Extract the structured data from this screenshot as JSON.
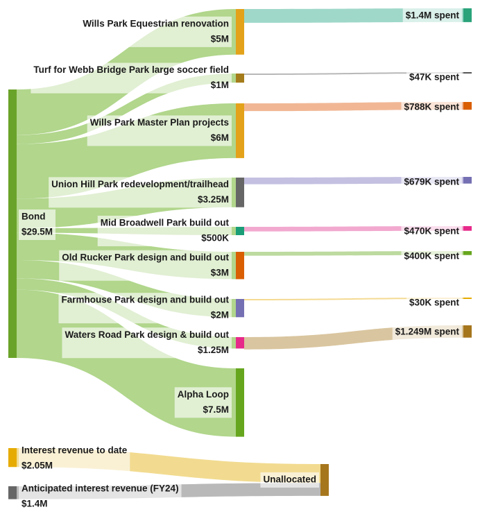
{
  "source": {
    "name": "Bond",
    "amount": "$29.5M",
    "color": "#6aa329"
  },
  "projects": [
    {
      "name": "Wills Park Equestrian renovation",
      "amount": "$5M",
      "budget": 5,
      "color": "#e3a21a",
      "spent": "$1.4M spent",
      "spent_value": 1.4,
      "spent_color": "#2aa37a",
      "link_color": "#8ed1bf"
    },
    {
      "name": "Turf for Webb Bridge Park large soccer field",
      "amount": "$1M",
      "budget": 1,
      "color": "#a57c1b",
      "spent": "$47K spent",
      "spent_value": 0.047,
      "spent_color": "#555555",
      "link_color": "#aaaaaa"
    },
    {
      "name": "Wills Park Master Plan projects",
      "amount": "$6M",
      "budget": 6,
      "color": "#e3a21a",
      "spent": "$788K spent",
      "spent_value": 0.788,
      "spent_color": "#d95f02",
      "link_color": "#eeaa82"
    },
    {
      "name": "Union Hill Park redevelopment/trailhead",
      "amount": "$3.25M",
      "budget": 3.25,
      "color": "#666666",
      "spent": "$679K spent",
      "spent_value": 0.679,
      "spent_color": "#7570b3",
      "link_color": "#b8b5dc"
    },
    {
      "name": "Mid Broadwell Park build out",
      "amount": "$500K",
      "budget": 0.5,
      "color": "#1b9e77",
      "spent": "$470K spent",
      "spent_value": 0.47,
      "spent_color": "#e7298a",
      "link_color": "#f09ac7"
    },
    {
      "name": "Old Rucker Park design and build out",
      "amount": "$3M",
      "budget": 3,
      "color": "#d95f02",
      "spent": "$400K spent",
      "spent_value": 0.4,
      "spent_color": "#66a61e",
      "link_color": "#b2d48e"
    },
    {
      "name": "Farmhouse Park design and build out",
      "amount": "$2M",
      "budget": 2,
      "color": "#7570b3",
      "spent": "$30K spent",
      "spent_value": 0.03,
      "spent_color": "#e6ab02",
      "link_color": "#f2d37f"
    },
    {
      "name": "Waters Road Park design & build out",
      "amount": "$1.25M",
      "budget": 1.25,
      "color": "#e7298a",
      "spent": "$1.249M spent",
      "spent_value": 1.249,
      "spent_color": "#a6761d",
      "link_color": "#d2bb8e"
    },
    {
      "name": "Alpha Loop",
      "amount": "$7.5M",
      "budget": 7.5,
      "color": "#66a61e",
      "spent": null,
      "spent_value": 0,
      "spent_color": null,
      "link_color": null
    }
  ],
  "interest_sources": [
    {
      "name": "Interest revenue to date",
      "amount": "$2.05M",
      "value": 2.05,
      "color": "#e6ab02",
      "link_color": "#f1d98a"
    },
    {
      "name": "Anticipated interest revenue (FY24)",
      "amount": "$1.4M",
      "value": 1.4,
      "color": "#666666",
      "link_color": "#b5b5b5"
    }
  ],
  "unallocated": {
    "name": "Unallocated",
    "color": "#a6761d"
  },
  "colors": {
    "bond_link": "#b1d68c"
  }
}
